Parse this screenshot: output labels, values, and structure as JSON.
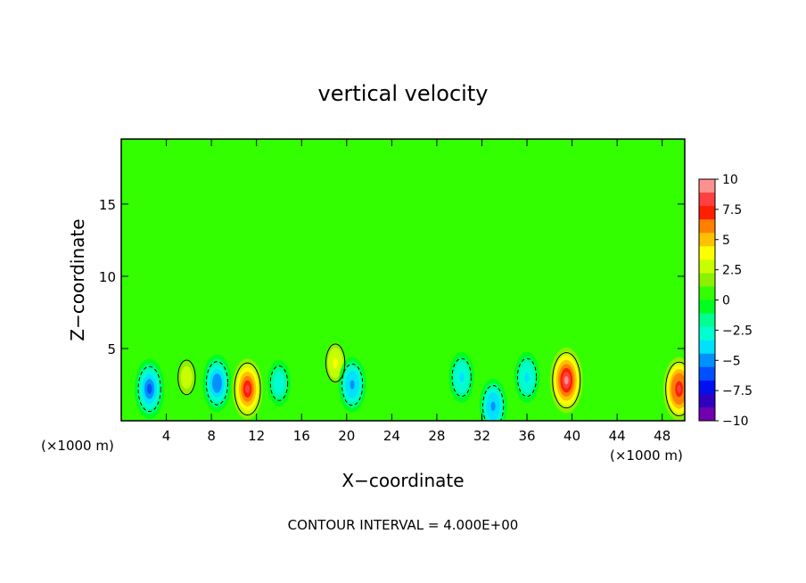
{
  "chart_data": {
    "type": "heatmap",
    "title": "vertical velocity",
    "xlabel": "X−coordinate",
    "ylabel": "Z−coordinate",
    "x_unit_left": "(×1000 m)",
    "x_unit_right": "(×1000 m)",
    "footer": "CONTOUR INTERVAL = 4.000E+00",
    "xlim": [
      0,
      50
    ],
    "ylim": [
      0,
      19.5
    ],
    "x_ticks": [
      4,
      8,
      12,
      16,
      20,
      24,
      28,
      32,
      36,
      40,
      44,
      48
    ],
    "y_ticks": [
      5,
      10,
      15
    ],
    "colorbar": {
      "range": [
        -10,
        10
      ],
      "ticks": [
        "10",
        "7.5",
        "5",
        "2.5",
        "0",
        "−2.5",
        "−5",
        "−7.5",
        "−10"
      ],
      "colors": [
        "#ff9090",
        "#ff4040",
        "#ff1f00",
        "#ff8000",
        "#ffc000",
        "#ffff00",
        "#c8ff00",
        "#8cf000",
        "#33ff00",
        "#00ff20",
        "#00ff90",
        "#00ffd0",
        "#00e0ff",
        "#0090ff",
        "#0050ff",
        "#0010f0",
        "#3000c0",
        "#7000b0"
      ]
    },
    "features": [
      {
        "x": 2.5,
        "z": 2.2,
        "w": -6
      },
      {
        "x": 5.8,
        "z": 3.0,
        "w": 3
      },
      {
        "x": 8.5,
        "z": 2.6,
        "w": -5.5
      },
      {
        "x": 11.2,
        "z": 2.2,
        "w": 8
      },
      {
        "x": 14.0,
        "z": 2.6,
        "w": -3
      },
      {
        "x": 19.0,
        "z": 4.0,
        "w": 4
      },
      {
        "x": 20.5,
        "z": 2.5,
        "w": -5
      },
      {
        "x": 30.2,
        "z": 3.0,
        "w": -4
      },
      {
        "x": 33.0,
        "z": 1.0,
        "w": -5
      },
      {
        "x": 36.0,
        "z": 3.0,
        "w": -4
      },
      {
        "x": 39.5,
        "z": 2.8,
        "w": 9
      },
      {
        "x": 49.5,
        "z": 2.2,
        "w": 8.5
      }
    ]
  }
}
